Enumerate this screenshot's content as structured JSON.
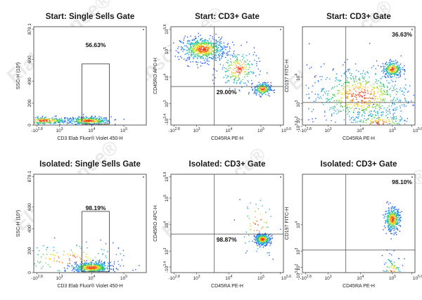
{
  "watermark": "Elabscience®",
  "chart_data": [
    {
      "type": "scatter",
      "title": "Start: Single Sells Gate",
      "xlabel": "CD3 Elab Fluor® Violet 450-H",
      "ylabel": "SSC-H (10³)",
      "x_scale": "log",
      "y_scale": "linear",
      "x_ticks": [
        {
          "b": "-10",
          "e": "2.8"
        },
        {
          "b": "10",
          "e": "3"
        },
        {
          "b": "10",
          "e": "4"
        },
        {
          "b": "10",
          "e": "5"
        }
      ],
      "y_ticks": [
        "879.1",
        "600",
        "400",
        "200",
        "0"
      ],
      "gate": {
        "type": "rectangle",
        "percent": "56.63%"
      },
      "populations": [
        {
          "x": 2.5,
          "y": 40,
          "n": 280,
          "sx": 0.45,
          "sy": 18
        },
        {
          "x": 3.9,
          "y": 38,
          "n": 360,
          "sx": 0.35,
          "sy": 18
        }
      ]
    },
    {
      "type": "scatter",
      "title": "Start: CD3+ Gate",
      "xlabel": "CD45RA PE-H",
      "ylabel": "CD45RO APC-H",
      "x_scale": "log",
      "y_scale": "log",
      "x_ticks": [
        {
          "b": "-10",
          "e": "2.8"
        },
        {
          "b": "10",
          "e": "3"
        },
        {
          "b": "10",
          "e": "4"
        },
        {
          "b": "10",
          "e": "5"
        },
        {
          "b": "10",
          "e": "5.6"
        }
      ],
      "y_ticks": [
        {
          "b": "10",
          "e": "5.8"
        },
        {
          "b": "10",
          "e": "5"
        },
        {
          "b": "10",
          "e": "4"
        },
        {
          "b": "10",
          "e": "3"
        },
        {
          "b": "-10",
          "e": "3.4"
        }
      ],
      "gate": {
        "type": "quadrant",
        "percent": "29.00%",
        "quadrant": "lower-right"
      },
      "populations": [
        {
          "x": 3.2,
          "y": 5.05,
          "n": 620,
          "sx": 0.35,
          "sy": 0.22
        },
        {
          "x": 4.3,
          "y": 4.3,
          "n": 220,
          "sx": 0.3,
          "sy": 0.35
        },
        {
          "x": 5.05,
          "y": 3.55,
          "n": 220,
          "sx": 0.13,
          "sy": 0.12
        }
      ]
    },
    {
      "type": "scatter",
      "title": "Start: CD3+ Gate",
      "xlabel": "CD45RA PE-H",
      "ylabel": "CD197 FITC-H",
      "x_scale": "log",
      "y_scale": "log",
      "x_ticks": [
        {
          "b": "-10",
          "e": "2.8"
        },
        {
          "b": "10",
          "e": "3"
        },
        {
          "b": "10",
          "e": "4"
        },
        {
          "b": "10",
          "e": "5"
        },
        {
          "b": "10",
          "e": "5.6"
        }
      ],
      "y_ticks": [
        {
          "b": "10",
          "e": "4"
        },
        {
          "b": "10",
          "e": "3"
        },
        {
          "b": "10",
          "e": "2"
        },
        {
          "b": "-10",
          "e": "3.3"
        }
      ],
      "gate": {
        "type": "quadrant",
        "percent": "36.63%",
        "quadrant": "upper-right"
      },
      "populations": [
        {
          "x": 4.0,
          "y": 3.3,
          "n": 700,
          "sx": 0.8,
          "sy": 0.55
        },
        {
          "x": 5.0,
          "y": 4.3,
          "n": 260,
          "sx": 0.15,
          "sy": 0.15
        },
        {
          "x": 4.6,
          "y": 2.2,
          "n": 240,
          "sx": 0.5,
          "sy": 0.3
        }
      ]
    },
    {
      "type": "scatter",
      "title": "Isolated: Single Sells Gate",
      "xlabel": "CD3 Elab Fluor® Violet 450-H",
      "ylabel": "SSC-H (10³)",
      "x_scale": "log",
      "y_scale": "linear",
      "x_ticks": [
        {
          "b": "-10",
          "e": "2.8"
        },
        {
          "b": "10",
          "e": "3"
        },
        {
          "b": "10",
          "e": "4"
        },
        {
          "b": "10",
          "e": "5"
        }
      ],
      "y_ticks": [
        "879.1",
        "600",
        "400",
        "200",
        "0"
      ],
      "gate": {
        "type": "rectangle",
        "percent": "98.19%"
      },
      "populations": [
        {
          "x": 4.0,
          "y": 45,
          "n": 520,
          "sx": 0.3,
          "sy": 25
        },
        {
          "x": 3.3,
          "y": 120,
          "n": 140,
          "sx": 0.9,
          "sy": 80
        }
      ]
    },
    {
      "type": "scatter",
      "title": "Isolated: CD3+ Gate",
      "xlabel": "CD45RA PE-H",
      "ylabel": "CD45RO APC-H",
      "x_scale": "log",
      "y_scale": "log",
      "x_ticks": [
        {
          "b": "-10",
          "e": "2.8"
        },
        {
          "b": "10",
          "e": "3"
        },
        {
          "b": "10",
          "e": "4"
        },
        {
          "b": "10",
          "e": "5"
        },
        {
          "b": "10",
          "e": "5.6"
        }
      ],
      "y_ticks": [
        {
          "b": "10",
          "e": "5.8"
        },
        {
          "b": "10",
          "e": "5"
        },
        {
          "b": "10",
          "e": "4"
        },
        {
          "b": "10",
          "e": "3"
        },
        {
          "b": "-10",
          "e": "3.4"
        }
      ],
      "gate": {
        "type": "quadrant",
        "percent": "98.87%",
        "quadrant": "lower-right"
      },
      "populations": [
        {
          "x": 5.05,
          "y": 3.45,
          "n": 360,
          "sx": 0.12,
          "sy": 0.1
        },
        {
          "x": 4.9,
          "y": 4.0,
          "n": 60,
          "sx": 0.3,
          "sy": 0.6
        }
      ]
    },
    {
      "type": "scatter",
      "title": "Isolated: CD3+ Gate",
      "xlabel": "CD45RA PE-H",
      "ylabel": "CD197 FITC-H",
      "x_scale": "log",
      "y_scale": "log",
      "x_ticks": [
        {
          "b": "-10",
          "e": "2.8"
        },
        {
          "b": "10",
          "e": "3"
        },
        {
          "b": "10",
          "e": "4"
        },
        {
          "b": "10",
          "e": "5"
        },
        {
          "b": "10",
          "e": "5.6"
        }
      ],
      "y_ticks": [
        {
          "b": "10",
          "e": "4"
        },
        {
          "b": "10",
          "e": "3"
        },
        {
          "b": "10",
          "e": "2"
        },
        {
          "b": "-10",
          "e": "3.3"
        }
      ],
      "gate": {
        "type": "quadrant",
        "percent": "98.10%",
        "quadrant": "upper-right"
      },
      "populations": [
        {
          "x": 5.0,
          "y": 4.2,
          "n": 380,
          "sx": 0.12,
          "sy": 0.22
        },
        {
          "x": 5.0,
          "y": 2.2,
          "n": 140,
          "sx": 0.15,
          "sy": 0.3
        }
      ]
    }
  ]
}
